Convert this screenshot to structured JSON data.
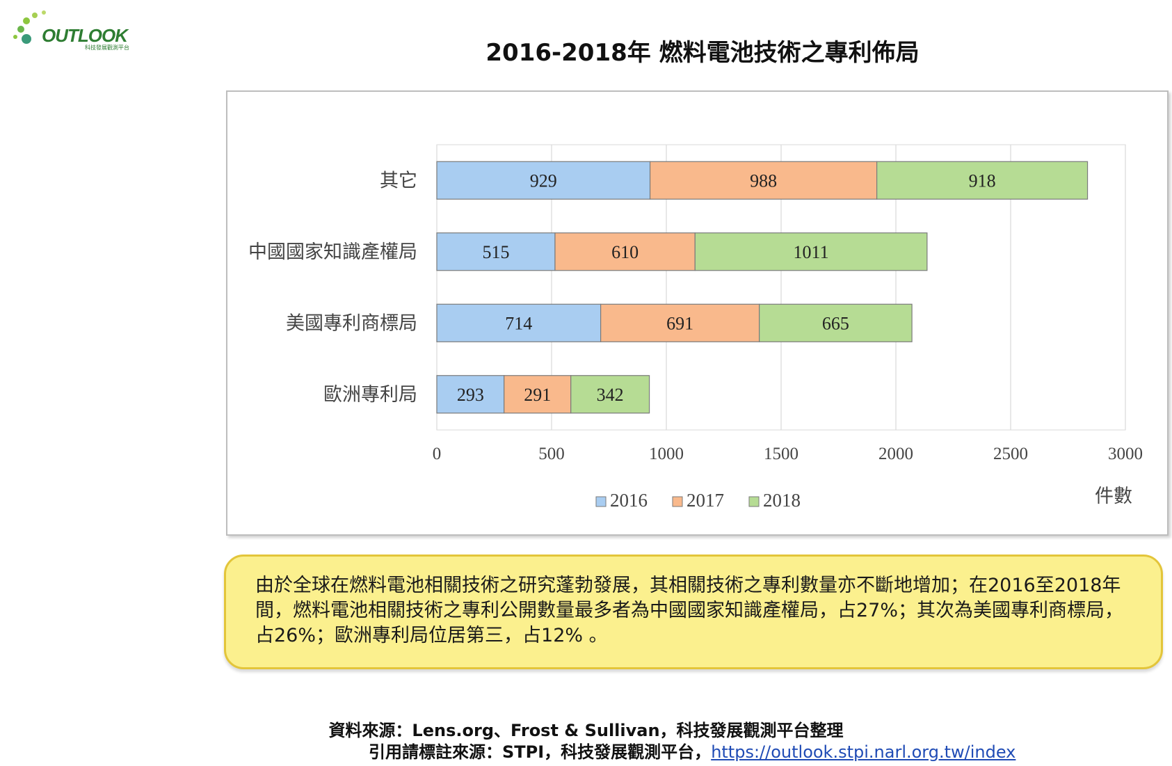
{
  "logo": {
    "text": "OUTLOOK",
    "subtitle": "科技發展觀測平台"
  },
  "page_title": "2016-2018年 燃料電池技術之專利佈局",
  "chart_data": {
    "type": "bar",
    "orientation": "horizontal",
    "stacked": true,
    "categories": [
      "其它",
      "中國國家知識產權局",
      "美國專利商標局",
      "歐洲專利局"
    ],
    "series": [
      {
        "name": "2016",
        "color": "#a9cdf1",
        "values": [
          929,
          515,
          714,
          293
        ]
      },
      {
        "name": "2017",
        "color": "#f9b98c",
        "values": [
          988,
          610,
          691,
          291
        ]
      },
      {
        "name": "2018",
        "color": "#b6dc94",
        "values": [
          918,
          1011,
          665,
          342
        ]
      }
    ],
    "xlim": [
      0,
      3000
    ],
    "xticks": [
      0,
      500,
      1000,
      1500,
      2000,
      2500,
      3000
    ],
    "xlabel": "件數",
    "grid": true,
    "legend_position": "bottom"
  },
  "summary_text": "由於全球在燃料電池相關技術之研究蓬勃發展，其相關技術之專利數量亦不斷地增加；在2016至2018年間，燃料電池相關技術之專利公開數量最多者為中國國家知識產權局，占27%；其次為美國專利商標局，占26%；歐洲專利局位居第三，占12% 。",
  "footer": {
    "source": "資料來源：Lens.org、Frost & Sullivan，科技發展觀測平台整理",
    "cite_prefix": "引用請標註來源：STPI，科技發展觀測平台，",
    "cite_link": "https://outlook.stpi.narl.org.tw/index"
  }
}
